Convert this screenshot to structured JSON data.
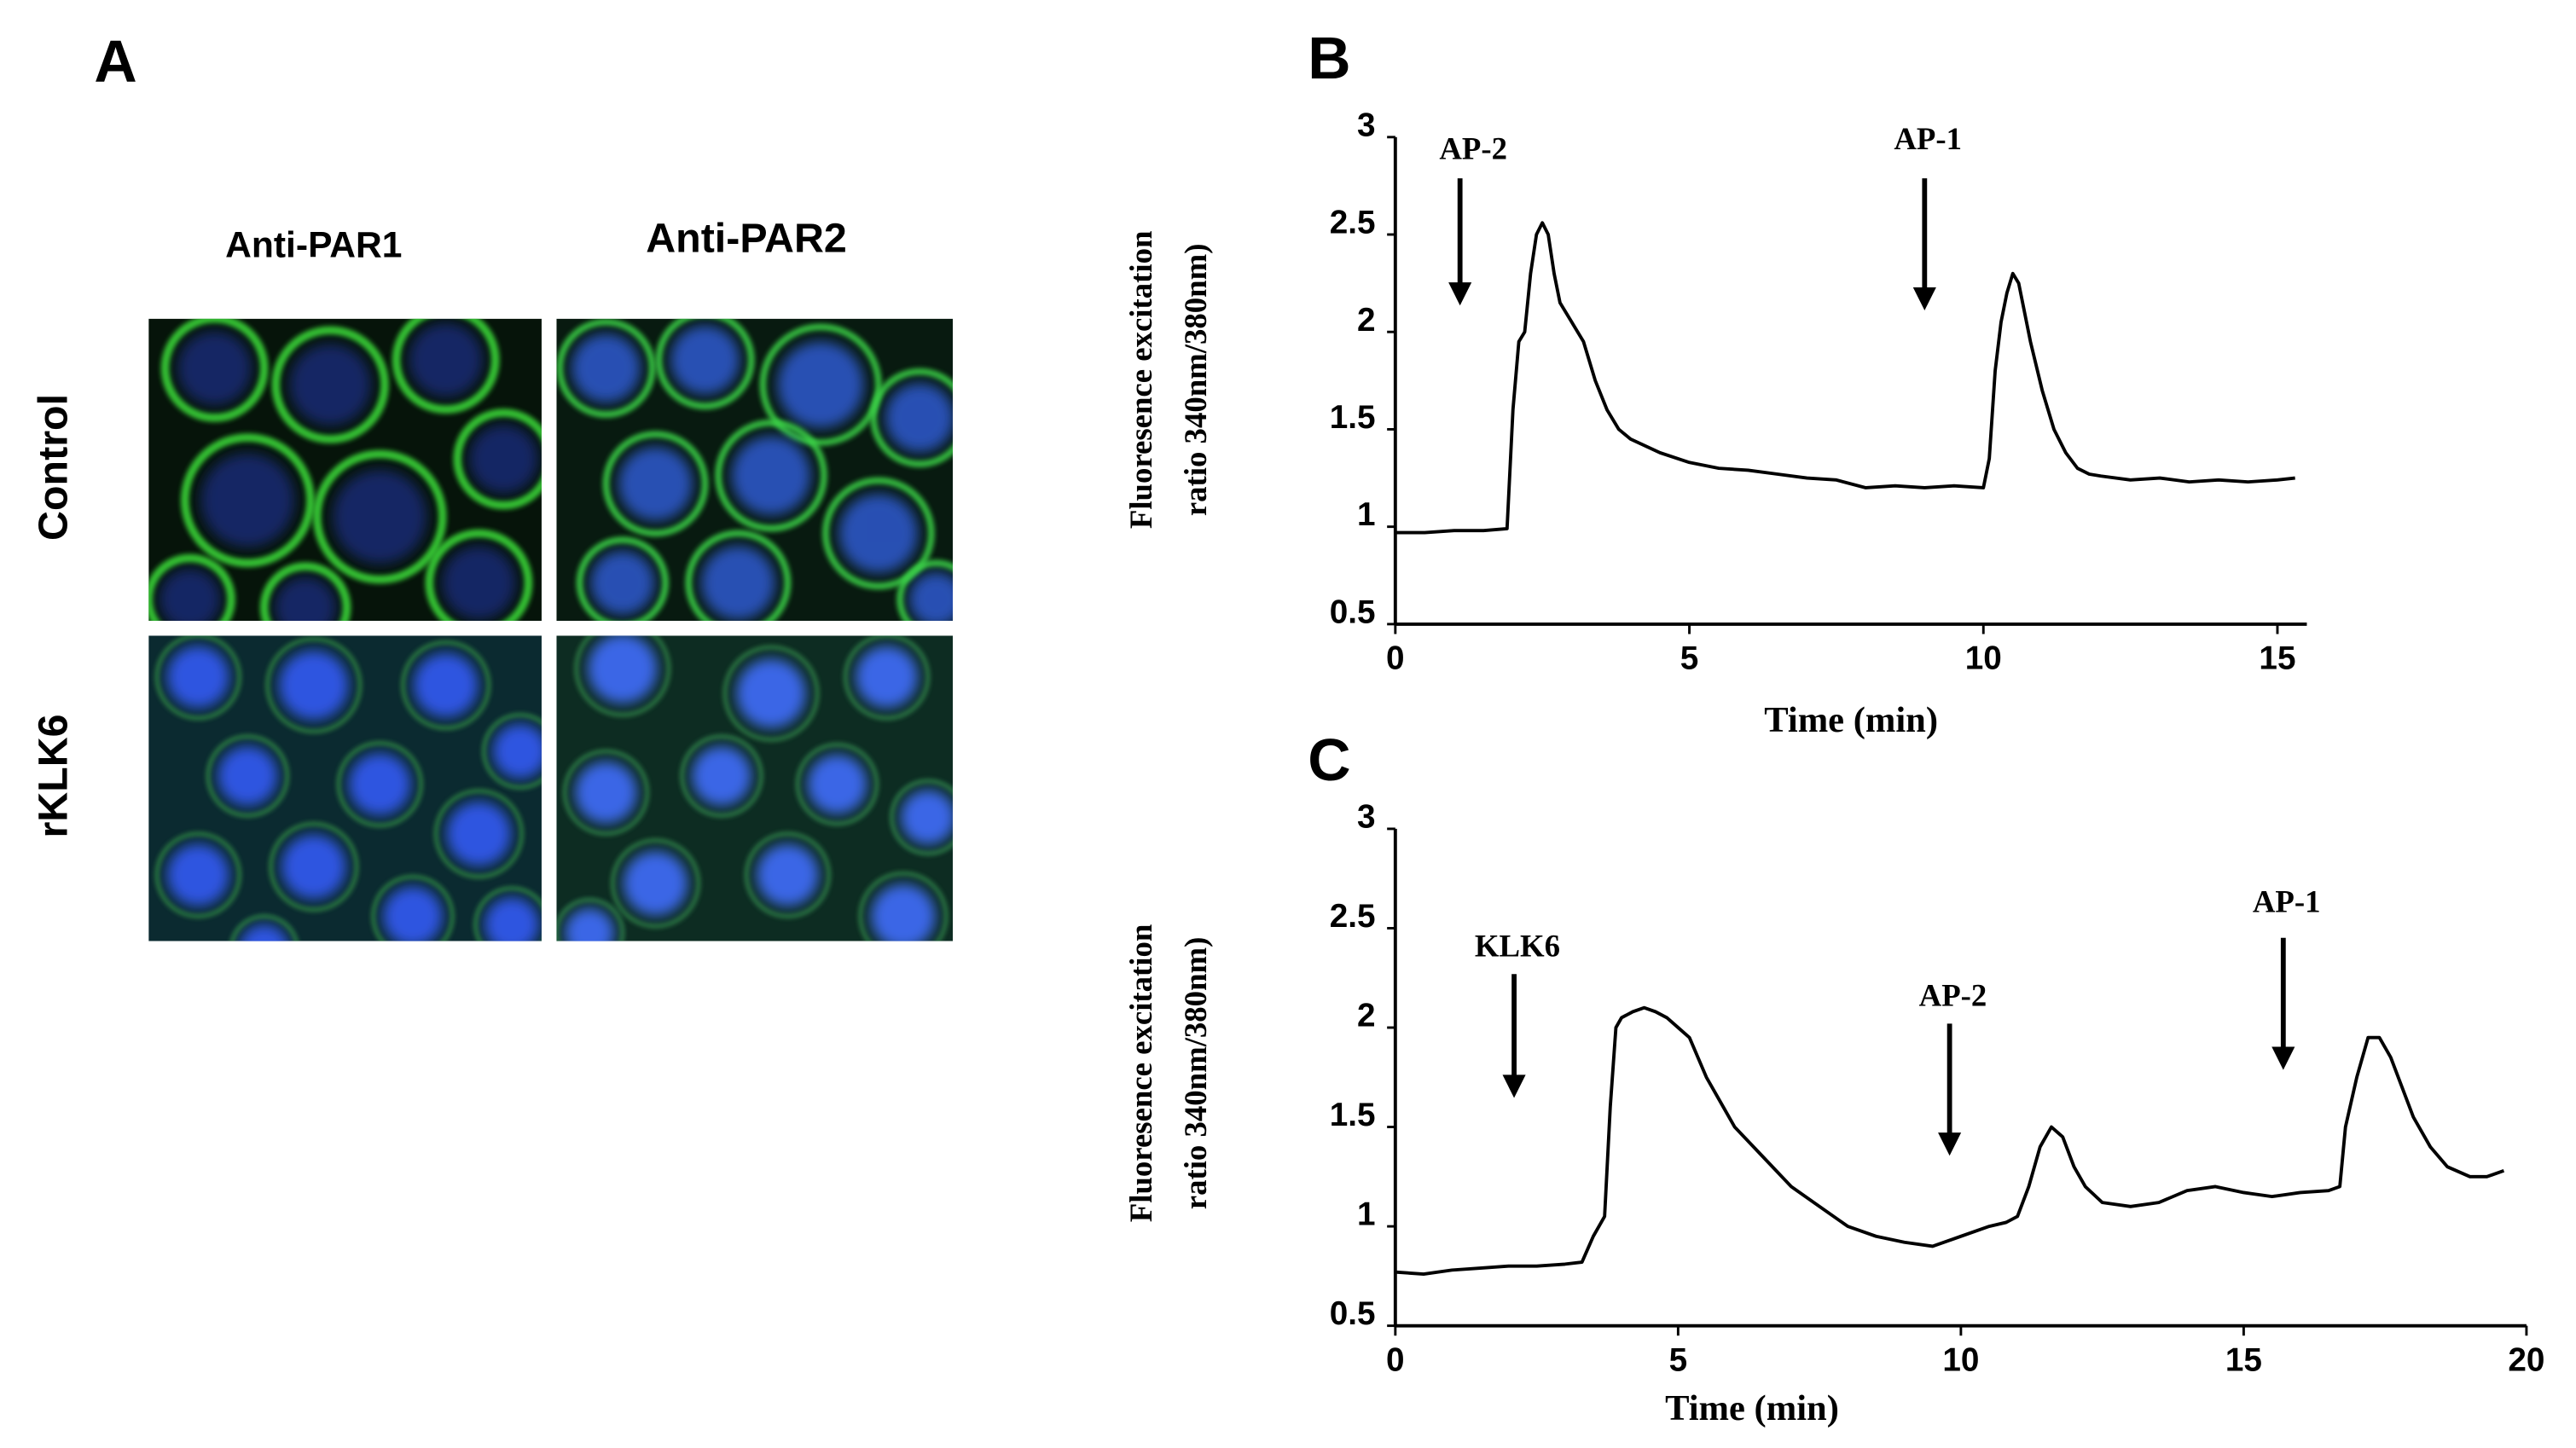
{
  "panel_a": {
    "label": "A",
    "columns": [
      "Anti-PAR1",
      "Anti-PAR2"
    ],
    "rows": [
      "Control",
      "rKLK6"
    ]
  },
  "chart_data": [
    {
      "type": "line",
      "panel": "B",
      "x_label": "Time (min)",
      "y_label": [
        "Fluoresence excitation",
        "ratio 340nm/380nm)"
      ],
      "xlim": [
        0,
        15.5
      ],
      "ylim": [
        0.5,
        3
      ],
      "xticks": [
        0,
        5,
        10,
        15
      ],
      "yticks": [
        0.5,
        1,
        1.5,
        2,
        2.5,
        3
      ],
      "color": "#000000",
      "x": [
        0,
        0.5,
        1,
        1.5,
        1.9,
        2.0,
        2.1,
        2.2,
        2.3,
        2.4,
        2.5,
        2.6,
        2.7,
        2.8,
        2.9,
        3.0,
        3.2,
        3.4,
        3.6,
        3.8,
        4.0,
        4.5,
        5,
        5.5,
        6,
        6.5,
        7,
        7.5,
        8,
        8.5,
        9,
        9.5,
        10,
        10.1,
        10.2,
        10.3,
        10.4,
        10.5,
        10.6,
        10.7,
        10.8,
        11.0,
        11.2,
        11.4,
        11.6,
        11.8,
        12,
        12.5,
        13,
        13.5,
        14,
        14.5,
        15,
        15.3
      ],
      "values": [
        0.97,
        0.97,
        0.98,
        0.98,
        0.99,
        1.6,
        1.95,
        2.0,
        2.3,
        2.5,
        2.56,
        2.5,
        2.3,
        2.15,
        2.1,
        2.05,
        1.95,
        1.75,
        1.6,
        1.5,
        1.45,
        1.38,
        1.33,
        1.3,
        1.29,
        1.27,
        1.25,
        1.24,
        1.2,
        1.21,
        1.2,
        1.21,
        1.2,
        1.35,
        1.8,
        2.05,
        2.2,
        2.3,
        2.25,
        2.1,
        1.95,
        1.7,
        1.5,
        1.38,
        1.3,
        1.27,
        1.26,
        1.24,
        1.25,
        1.23,
        1.24,
        1.23,
        1.24,
        1.25
      ],
      "annotations": [
        {
          "text": "AP-2",
          "x": 1.1
        },
        {
          "text": "AP-1",
          "x": 9.0
        }
      ]
    },
    {
      "type": "line",
      "panel": "C",
      "x_label": "Time (min)",
      "y_label": [
        "Fluoresence excitation",
        "ratio 340nm/380nm)"
      ],
      "xlim": [
        0,
        20
      ],
      "ylim": [
        0.5,
        3
      ],
      "xticks": [
        0,
        5,
        10,
        15,
        20
      ],
      "yticks": [
        0.5,
        1,
        1.5,
        2,
        2.5,
        3
      ],
      "color": "#000000",
      "x": [
        0,
        0.5,
        1,
        1.5,
        2,
        2.5,
        3,
        3.3,
        3.5,
        3.7,
        3.8,
        3.9,
        4.0,
        4.2,
        4.4,
        4.6,
        4.8,
        5.0,
        5.2,
        5.5,
        5.8,
        6,
        6.5,
        7,
        7.5,
        8,
        8.5,
        9,
        9.5,
        10,
        10.5,
        10.8,
        11.0,
        11.2,
        11.4,
        11.6,
        11.8,
        12,
        12.2,
        12.5,
        13,
        13.5,
        14,
        14.5,
        15,
        15.5,
        16,
        16.5,
        16.7,
        16.8,
        17.0,
        17.2,
        17.4,
        17.6,
        17.8,
        18,
        18.3,
        18.6,
        19,
        19.3,
        19.6
      ],
      "values": [
        0.77,
        0.76,
        0.78,
        0.79,
        0.8,
        0.8,
        0.81,
        0.82,
        0.95,
        1.05,
        1.6,
        2.0,
        2.05,
        2.08,
        2.1,
        2.08,
        2.05,
        2.0,
        1.95,
        1.75,
        1.6,
        1.5,
        1.35,
        1.2,
        1.1,
        1.0,
        0.95,
        0.92,
        0.9,
        0.95,
        1.0,
        1.02,
        1.05,
        1.2,
        1.4,
        1.5,
        1.45,
        1.3,
        1.2,
        1.12,
        1.1,
        1.12,
        1.18,
        1.2,
        1.17,
        1.15,
        1.17,
        1.18,
        1.2,
        1.5,
        1.75,
        1.95,
        1.95,
        1.85,
        1.7,
        1.55,
        1.4,
        1.3,
        1.25,
        1.25,
        1.28
      ],
      "annotations": [
        {
          "text": "KLK6",
          "x": 2.1
        },
        {
          "text": "AP-2",
          "x": 9.8
        },
        {
          "text": "AP-1",
          "x": 15.7
        }
      ]
    }
  ]
}
